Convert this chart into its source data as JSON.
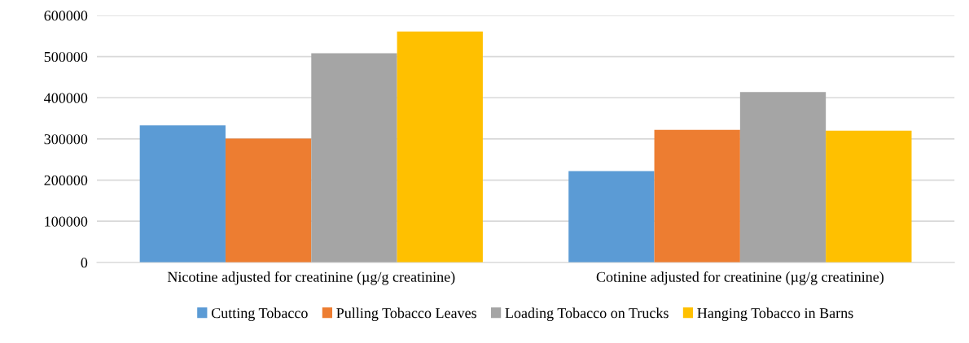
{
  "chart_data": {
    "type": "bar",
    "categories": [
      "Nicotine adjusted for creatinine (µg/g creatinine)",
      "Cotinine adjusted for creatinine (µg/g creatinine)"
    ],
    "series": [
      {
        "name": "Cutting Tobacco",
        "color": "#5b9bd5",
        "values": [
          333000,
          222000
        ]
      },
      {
        "name": "Pulling Tobacco Leaves",
        "color": "#ed7d31",
        "values": [
          301000,
          322000
        ]
      },
      {
        "name": "Loading Tobacco on Trucks",
        "color": "#a5a5a5",
        "values": [
          508000,
          414000
        ]
      },
      {
        "name": "Hanging Tobacco in Barns",
        "color": "#ffc000",
        "values": [
          561000,
          320000
        ]
      }
    ],
    "ylim": [
      0,
      600000
    ],
    "yticks": [
      0,
      100000,
      200000,
      300000,
      400000,
      500000,
      600000
    ],
    "grid": "y",
    "legend": "bottom"
  }
}
